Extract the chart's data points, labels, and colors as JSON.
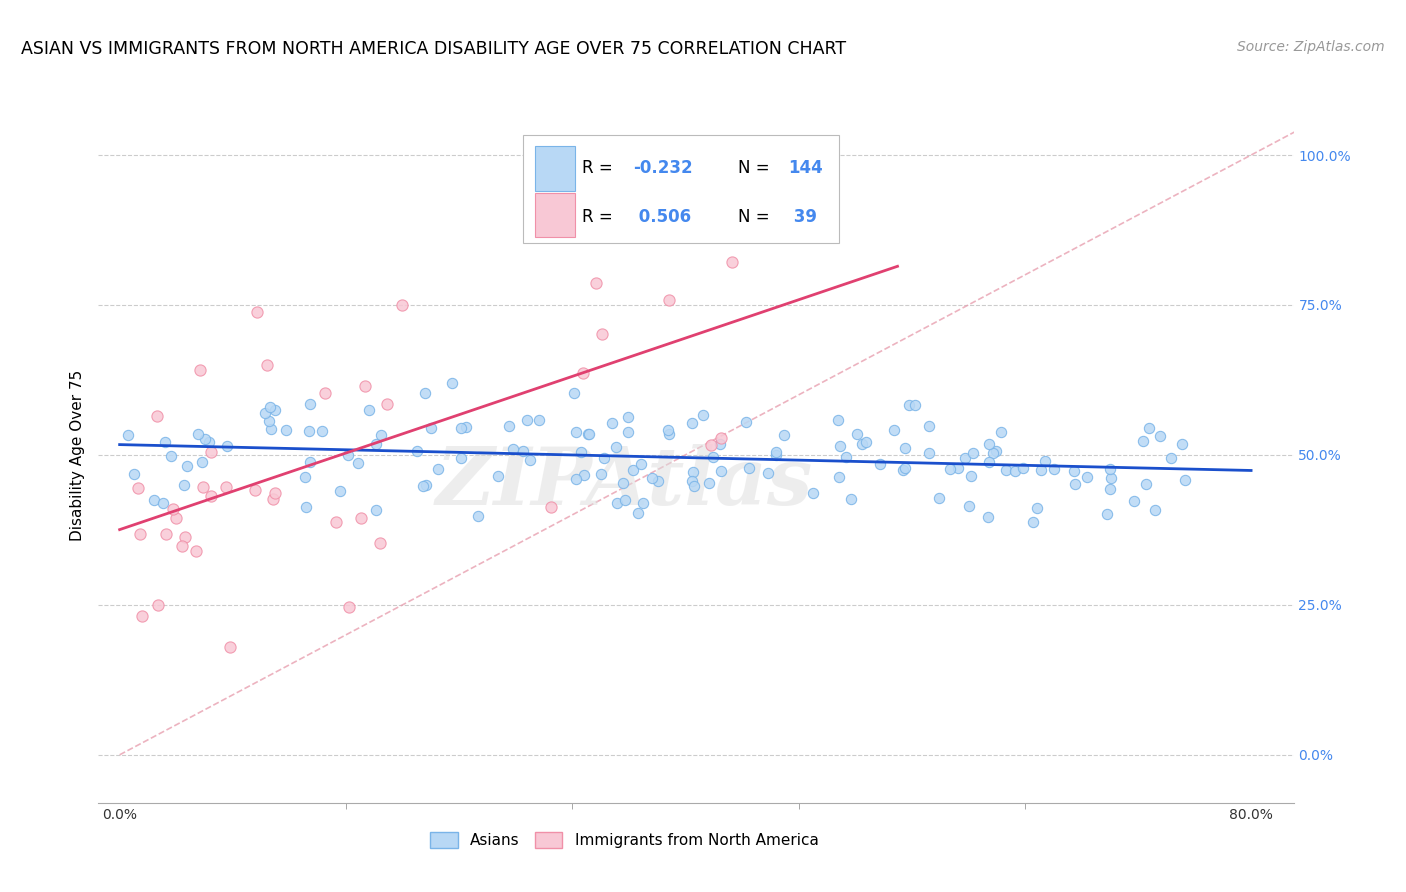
{
  "title": "ASIAN VS IMMIGRANTS FROM NORTH AMERICA DISABILITY AGE OVER 75 CORRELATION CHART",
  "source": "Source: ZipAtlas.com",
  "ylabel": "Disability Age Over 75",
  "ytick_positions": [
    0,
    25,
    50,
    75,
    100
  ],
  "xlim_data": [
    0,
    80
  ],
  "ylim_data": [
    0,
    100
  ],
  "asian_R": -0.232,
  "asian_N": 144,
  "immig_R": 0.506,
  "immig_N": 39,
  "asian_color_edge": "#7ab4e8",
  "asian_color_face": "#b8d8f5",
  "immig_color_edge": "#f090a8",
  "immig_color_face": "#f8c8d5",
  "trend_asian_color": "#1a4fcc",
  "trend_immig_color": "#e04070",
  "trend_diag_color": "#e8a0b0",
  "background_color": "#ffffff",
  "grid_color": "#cccccc",
  "watermark": "ZIPAtlas",
  "legend_labels": [
    "Asians",
    "Immigrants from North America"
  ],
  "title_fontsize": 12.5,
  "axis_label_fontsize": 11,
  "tick_fontsize": 10,
  "source_fontsize": 10
}
